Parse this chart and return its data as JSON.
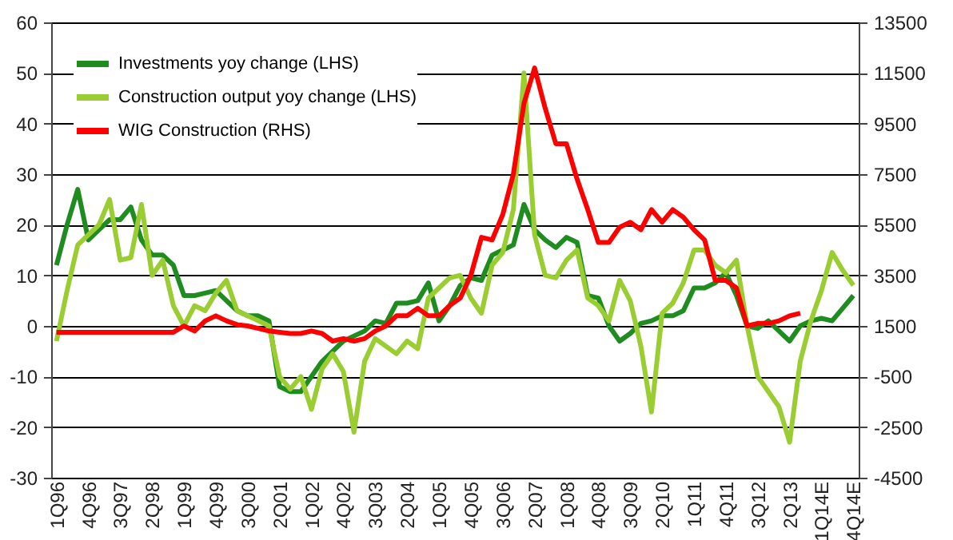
{
  "chart_data": {
    "type": "line",
    "categories": [
      "1Q96",
      null,
      null,
      "4Q96",
      null,
      null,
      "3Q97",
      null,
      null,
      "2Q98",
      null,
      null,
      "1Q99",
      null,
      null,
      "4Q99",
      null,
      null,
      "3Q00",
      null,
      null,
      "2Q01",
      null,
      null,
      "1Q02",
      null,
      null,
      "4Q02",
      null,
      null,
      "3Q03",
      null,
      null,
      "2Q04",
      null,
      null,
      "1Q05",
      null,
      null,
      "4Q05",
      null,
      null,
      "3Q06",
      null,
      null,
      "2Q07",
      null,
      null,
      "1Q08",
      null,
      null,
      "4Q08",
      null,
      null,
      "3Q09",
      null,
      null,
      "2Q10",
      null,
      null,
      "1Q11",
      null,
      null,
      "4Q11",
      null,
      null,
      "3Q12",
      null,
      null,
      "2Q13",
      null,
      null,
      "1Q14E",
      null,
      null,
      "4Q14E"
    ],
    "series": [
      {
        "name": "Investments yoy change (LHS)",
        "color": "#1e8c1e",
        "values": [
          12,
          20,
          27,
          17,
          19,
          21,
          21,
          23.5,
          17,
          14,
          14,
          12,
          6,
          6,
          6.5,
          7,
          5,
          3,
          2,
          2,
          1,
          -12,
          -13,
          -13,
          -10,
          -7,
          -5,
          -3,
          -2,
          -1,
          1,
          0.5,
          4.5,
          4.5,
          5,
          8.5,
          1,
          4,
          8,
          9.5,
          9,
          14,
          15,
          16,
          24,
          19,
          17,
          15.5,
          17.5,
          16.5,
          6,
          5.5,
          0,
          -3,
          -1.5,
          0.5,
          1,
          2,
          2,
          3,
          7.5,
          7.5,
          8.5,
          10.5,
          6,
          0,
          -0.5,
          1,
          -1,
          -3,
          0,
          1,
          1.5,
          1,
          3.5,
          6
        ]
      },
      {
        "name": "Construction output yoy change (LHS)",
        "color": "#9acd32",
        "values": [
          -3,
          7,
          16,
          18,
          20,
          25,
          13,
          13.5,
          24,
          10,
          13,
          4,
          0,
          4,
          3,
          6.5,
          9,
          3,
          2,
          1,
          0,
          -10,
          -12.5,
          -10,
          -16.5,
          -8.5,
          -5.5,
          -9,
          -21,
          -7,
          -2.5,
          -4,
          -5.5,
          -3,
          -4.5,
          5.5,
          7.5,
          9.5,
          10,
          5.5,
          2.5,
          12,
          14.5,
          23,
          50,
          18,
          10,
          9.5,
          13,
          15,
          5.5,
          4,
          1,
          9,
          5,
          -4,
          -17,
          2.5,
          4.5,
          8.5,
          15,
          15,
          12,
          10.5,
          13,
          0,
          -10,
          -13,
          -16,
          -23,
          -7,
          1,
          7,
          14.5,
          11,
          8
        ]
      },
      {
        "name": "WIG Construction (RHS)",
        "color": "#ff0000",
        "axis": "y2",
        "values": [
          1250,
          1250,
          1250,
          1250,
          1250,
          1250,
          1250,
          1250,
          1250,
          1250,
          1250,
          1250,
          1500,
          1300,
          1700,
          1900,
          1700,
          1550,
          1500,
          1400,
          1300,
          1250,
          1200,
          1200,
          1300,
          1200,
          900,
          1000,
          900,
          1000,
          1300,
          1500,
          1900,
          1900,
          2200,
          1900,
          1900,
          2300,
          2600,
          3500,
          5000,
          4900,
          5900,
          7500,
          10300,
          11700,
          10100,
          8700,
          8700,
          7300,
          6100,
          4800,
          4800,
          5400,
          5600,
          5300,
          6100,
          5600,
          6100,
          5800,
          5300,
          4900,
          3300,
          3300,
          3000,
          1500,
          1600,
          1600,
          1700,
          1900,
          2000,
          null,
          null,
          null,
          null,
          null
        ]
      }
    ],
    "ylim": [
      -30,
      60
    ],
    "yticks": [
      -30,
      -20,
      -10,
      0,
      10,
      20,
      30,
      40,
      50,
      60
    ],
    "y2lim": [
      -4500,
      13500
    ],
    "y2ticks": [
      -4500,
      -2500,
      -500,
      1500,
      3500,
      5500,
      7500,
      9500,
      11500,
      13500
    ],
    "grid": "y",
    "legend": "top left",
    "line_style": "solid",
    "marker": "none"
  }
}
